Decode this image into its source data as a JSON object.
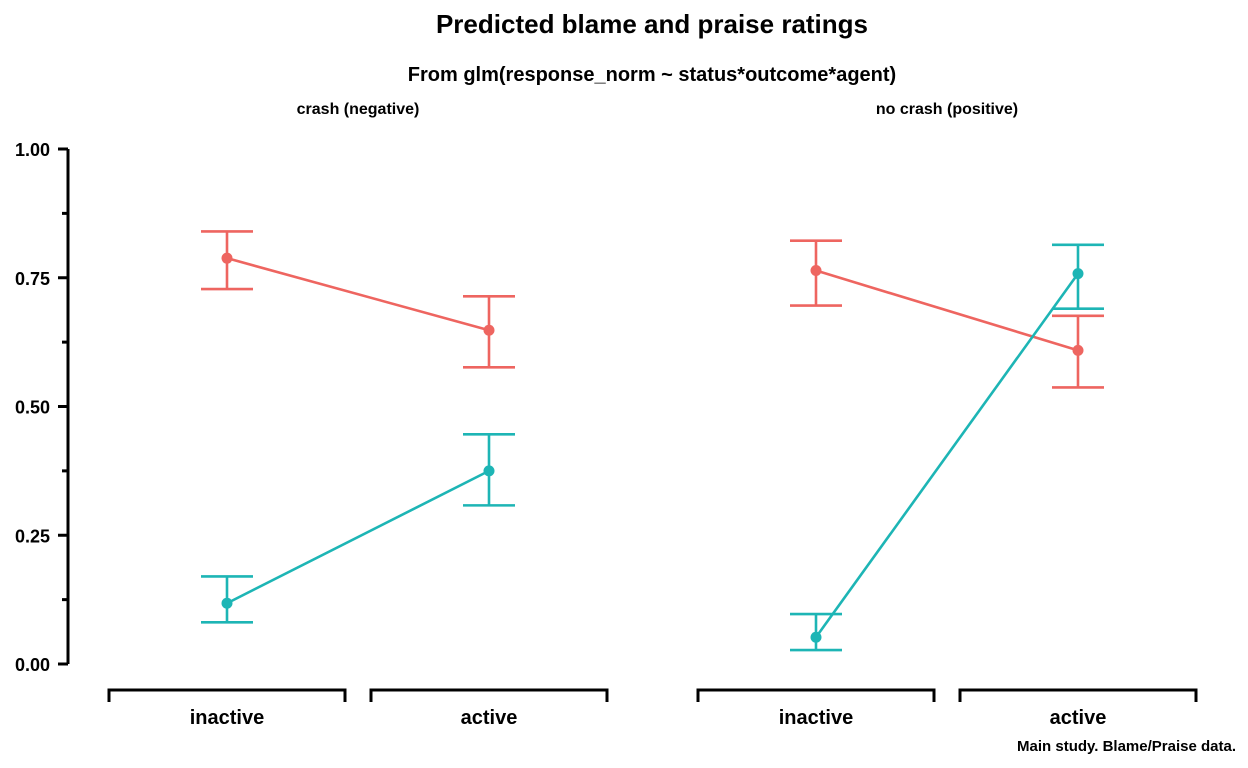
{
  "chart_data": {
    "type": "line",
    "title": "Predicted blame and praise ratings",
    "subtitle": "From glm(response_norm ~ status*outcome*agent)",
    "caption": "Main study. Blame/Praise data.",
    "xlabel": "",
    "ylabel": "",
    "ylim": [
      0,
      1
    ],
    "y_ticks": [
      "0.00",
      "0.25",
      "0.50",
      "0.75",
      "1.00"
    ],
    "categories": [
      "inactive",
      "active"
    ],
    "legend": "none",
    "grid": false,
    "series_colors": [
      "#EE6560",
      "#1DB5B5"
    ],
    "panels": [
      {
        "label": "crash (negative)",
        "series": [
          {
            "color": "#EE6560",
            "values": [
              0.788,
              0.648
            ],
            "lower": [
              0.728,
              0.576
            ],
            "upper": [
              0.84,
              0.714
            ]
          },
          {
            "color": "#1DB5B5",
            "values": [
              0.118,
              0.375
            ],
            "lower": [
              0.081,
              0.308
            ],
            "upper": [
              0.17,
              0.446
            ]
          }
        ]
      },
      {
        "label": "no crash (positive)",
        "series": [
          {
            "color": "#EE6560",
            "values": [
              0.764,
              0.609
            ],
            "lower": [
              0.696,
              0.537
            ],
            "upper": [
              0.822,
              0.676
            ]
          },
          {
            "color": "#1DB5B5",
            "values": [
              0.052,
              0.758
            ],
            "lower": [
              0.027,
              0.69
            ],
            "upper": [
              0.097,
              0.814
            ]
          }
        ]
      }
    ]
  }
}
